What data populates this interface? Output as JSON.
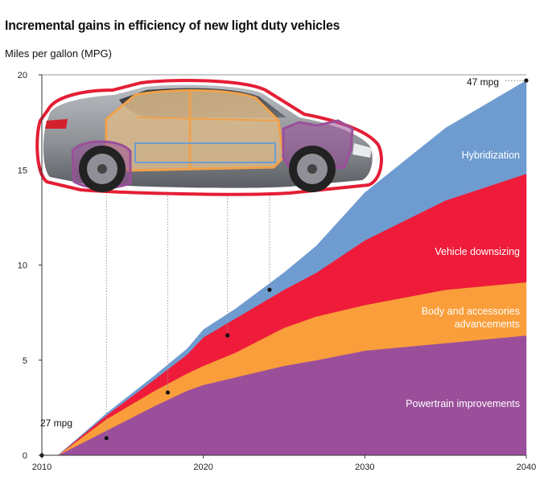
{
  "title": "Incremental gains in efficiency of new light duty vehicles",
  "subtitle": "Miles per gallon (MPG)",
  "chart_data": {
    "type": "area",
    "stacked": true,
    "x": [
      2010,
      2011,
      2014,
      2017,
      2019,
      2020,
      2022,
      2025,
      2027,
      2030,
      2035,
      2040
    ],
    "xticks": [
      2010,
      2020,
      2030,
      2040
    ],
    "yticks": [
      0,
      5,
      10,
      15,
      20
    ],
    "xlim": [
      2010,
      2040
    ],
    "ylim": [
      0,
      20
    ],
    "grid": false,
    "series": [
      {
        "name": "Powertrain improvements",
        "color": "#9b4f9b",
        "values": [
          0,
          0,
          1.3,
          2.6,
          3.4,
          3.7,
          4.1,
          4.7,
          5.0,
          5.5,
          5.9,
          6.3
        ]
      },
      {
        "name": "Body and accessories advancements",
        "color": "#f99e3a",
        "values": [
          0,
          0,
          0.6,
          0.8,
          0.9,
          1.0,
          1.3,
          2.0,
          2.3,
          2.4,
          2.8,
          2.8
        ]
      },
      {
        "name": "Vehicle downsizing",
        "color": "#ee1c3a",
        "values": [
          0,
          0,
          0.2,
          0.6,
          1.0,
          1.5,
          1.8,
          2.0,
          2.3,
          3.4,
          4.7,
          5.7
        ]
      },
      {
        "name": "Hybridization",
        "color": "#6f9cd0",
        "values": [
          0,
          0,
          0.1,
          0.2,
          0.3,
          0.4,
          0.5,
          0.9,
          1.4,
          2.5,
          3.8,
          4.9
        ]
      }
    ],
    "band_labels": [
      "Hybridization",
      "Vehicle downsizing",
      "Body and accessories",
      "advancements",
      "Powertrain improvements"
    ],
    "annotations": [
      {
        "text": "27 mpg",
        "x": 2010,
        "y": 0
      },
      {
        "text": "47 mpg",
        "x": 2040,
        "y": 19.7
      }
    ],
    "callout_points": [
      {
        "x": 2014,
        "y": 0.9
      },
      {
        "x": 2017.8,
        "y": 3.3
      },
      {
        "x": 2021.5,
        "y": 6.3
      },
      {
        "x": 2024.1,
        "y": 8.7
      }
    ]
  }
}
